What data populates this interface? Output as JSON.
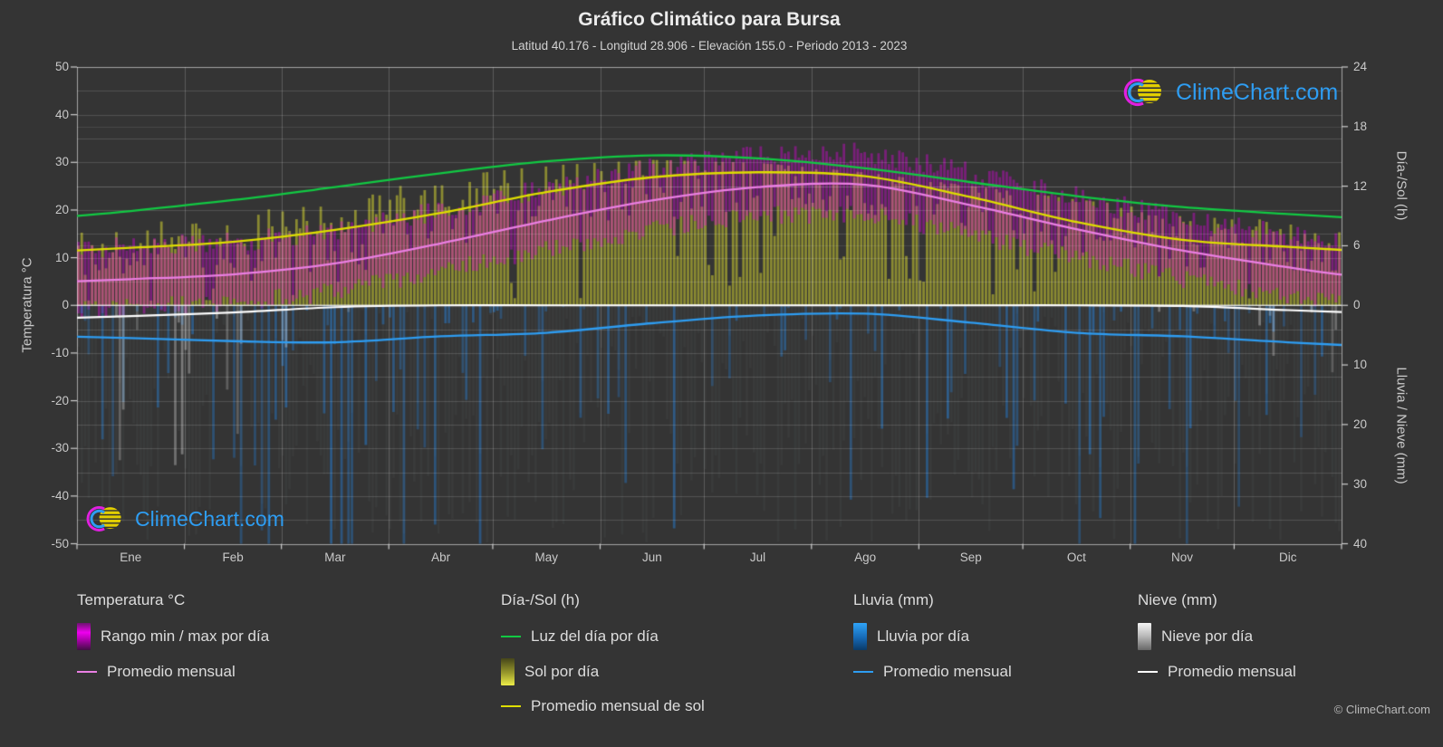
{
  "header": {
    "title": "Gráfico Climático para Bursa",
    "subtitle": "Latitud 40.176 - Longitud 28.906 - Elevación 155.0 - Periodo 2013 - 2023"
  },
  "axes": {
    "left": {
      "label": "Temperatura °C",
      "ticks": [
        "50",
        "40",
        "30",
        "20",
        "10",
        "0",
        "-10",
        "-20",
        "-30",
        "-40",
        "-50"
      ]
    },
    "right_top": {
      "label": "Día-/Sol (h)",
      "ticks": [
        "24",
        "18",
        "12",
        "6",
        "0"
      ]
    },
    "right_bottom": {
      "label": "Lluvia / Nieve (mm)",
      "ticks": [
        "10",
        "20",
        "30",
        "40"
      ]
    },
    "x": {
      "months": [
        "Ene",
        "Feb",
        "Mar",
        "Abr",
        "May",
        "Jun",
        "Jul",
        "Ago",
        "Sep",
        "Oct",
        "Nov",
        "Dic"
      ]
    }
  },
  "chart_data": {
    "type": "area",
    "title": "Gráfico Climático para Bursa",
    "categories": [
      "Ene",
      "Feb",
      "Mar",
      "Abr",
      "May",
      "Jun",
      "Jul",
      "Ago",
      "Sep",
      "Oct",
      "Nov",
      "Dic"
    ],
    "ylim_temp_c": [
      -50,
      50
    ],
    "ylim_sun_h": [
      0,
      24
    ],
    "ylim_precip_mm": [
      0,
      40
    ],
    "grid": true,
    "legend_position": "bottom",
    "series": [
      {
        "name": "Promedio mensual (temperatura, °C)",
        "values": [
          5.5,
          6.5,
          8.8,
          13.0,
          17.8,
          22.0,
          24.8,
          25.3,
          21.0,
          16.0,
          11.5,
          8.0
        ]
      },
      {
        "name": "Luz del día por día (h)",
        "values": [
          9.5,
          10.6,
          11.9,
          13.3,
          14.5,
          15.1,
          14.8,
          13.8,
          12.4,
          11.0,
          9.9,
          9.2
        ]
      },
      {
        "name": "Promedio mensual de sol (h)",
        "values": [
          5.8,
          6.4,
          7.6,
          9.3,
          11.4,
          12.9,
          13.4,
          13.0,
          10.9,
          8.4,
          6.6,
          5.9
        ]
      },
      {
        "name": "Promedio mensual lluvia (mm)",
        "values": [
          5.5,
          6.0,
          6.2,
          5.2,
          4.6,
          3.0,
          1.7,
          1.4,
          2.9,
          4.6,
          5.2,
          6.2
        ]
      },
      {
        "name": "Promedio mensual nieve (mm)",
        "values": [
          1.8,
          1.2,
          0.3,
          0,
          0,
          0,
          0,
          0,
          0,
          0,
          0.1,
          0.8
        ]
      },
      {
        "name": "Rango min/max por día (°C, banda típica)",
        "values": [
          5.5,
          6.5,
          8.8,
          13.0,
          17.8,
          22.0,
          24.8,
          25.3,
          21.0,
          16.0,
          11.5,
          8.0
        ]
      }
    ],
    "colors": {
      "background": "#343434",
      "temp_range_bar": "#e000e0",
      "temp_avg_line": "#ea7fe3",
      "daylight_line": "#12c943",
      "sun_bar": "#c4c430",
      "sun_avg_line": "#dede00",
      "rain_bar": "#2680cc",
      "rain_avg_line": "#2e9df2",
      "snow_bar": "#e1e1e1",
      "snow_avg_line": "#ffffff",
      "watermark": "#2e9df2"
    }
  },
  "legend": {
    "groups": [
      {
        "title": "Temperatura °C",
        "items": [
          {
            "label": "Rango min / max por día"
          },
          {
            "label": "Promedio mensual"
          }
        ]
      },
      {
        "title": "Día-/Sol (h)",
        "items": [
          {
            "label": "Luz del día por día"
          },
          {
            "label": "Sol por día"
          },
          {
            "label": "Promedio mensual de sol"
          }
        ]
      },
      {
        "title": "Lluvia (mm)",
        "items": [
          {
            "label": "Lluvia por día"
          },
          {
            "label": "Promedio mensual"
          }
        ]
      },
      {
        "title": "Nieve (mm)",
        "items": [
          {
            "label": "Nieve por día"
          },
          {
            "label": "Promedio mensual"
          }
        ]
      }
    ]
  },
  "logos": {
    "text": "ClimeChart.com"
  },
  "footer": {
    "copyright": "© ClimeChart.com"
  }
}
